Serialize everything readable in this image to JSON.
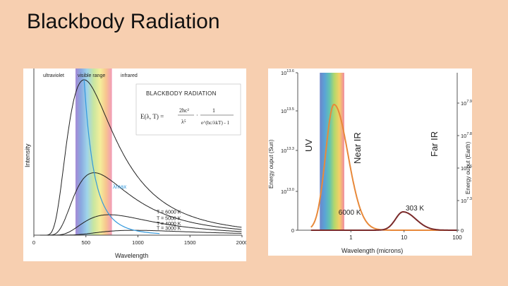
{
  "slide": {
    "title": "Blackbody Radiation"
  },
  "chart_data": [
    {
      "type": "line",
      "title": "BLACKBODY RADIATION",
      "formula": {
        "lhs": "E(λ, T) =",
        "num1": "2hc²",
        "den1": "λ⁵",
        "dot": "·",
        "num2": "1",
        "den2": "e^(hc/λkT) - 1"
      },
      "xlabel": "Wavelength",
      "ylabel": "Intensity",
      "xlim": [
        0,
        2000
      ],
      "x_ticks": [
        "0",
        "500",
        "1000",
        "1500",
        "2000"
      ],
      "region_labels": {
        "uv": "ultraviolet",
        "visible": "visible range",
        "ir": "infrared"
      },
      "visible_band": [
        400,
        750
      ],
      "series": [
        {
          "name": "T = 6000 K",
          "temperature_K": 6000
        },
        {
          "name": "T = 5000 K",
          "temperature_K": 5000
        },
        {
          "name": "T = 4000 K",
          "temperature_K": 4000
        },
        {
          "name": "T = 3000 K",
          "temperature_K": 3000
        }
      ],
      "peak_curve_label": "λmax",
      "colors": {
        "curves": "#222222",
        "peak_curve": "#3399dd"
      }
    },
    {
      "type": "line",
      "xlabel": "Wavelength (microns)",
      "ylabel_left": "Energy ouput (Sun)",
      "ylabel_right": "Energy ouput (Earth)",
      "x_scale": "log",
      "xlim": [
        0.1,
        100
      ],
      "x_ticks": [
        "1",
        "10",
        "100"
      ],
      "y_ticks_left": [
        "0",
        "10^13.0",
        "10^13.3",
        "10^13.5",
        "10^13.6"
      ],
      "y_ticks_right": [
        "0",
        "10^7.3",
        "10^7.6",
        "10^7.8",
        "10^7.9"
      ],
      "region_labels": {
        "uv": "UV",
        "near_ir": "Near IR",
        "far_ir": "Far IR"
      },
      "visible_band": [
        0.38,
        0.75
      ],
      "series": [
        {
          "name": "6000 K",
          "peak_x": 0.48,
          "color": "#e8893a"
        },
        {
          "name": "303 K",
          "peak_x": 9.6,
          "color": "#7a2a2a"
        }
      ]
    }
  ]
}
